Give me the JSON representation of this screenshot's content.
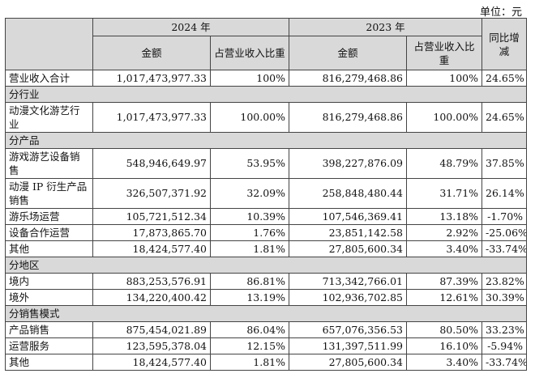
{
  "unit_label": "单位：元",
  "header": {
    "year_2024": "2024 年",
    "year_2023": "2023 年",
    "amount": "金额",
    "ratio": "占营业收入比重",
    "yoy": "同比增减"
  },
  "total": {
    "label": "营业收入合计",
    "amount_2024": "1,017,473,977.33",
    "ratio_2024": "100%",
    "amount_2023": "816,279,468.86",
    "ratio_2023": "100%",
    "yoy": "24.65%"
  },
  "sections": {
    "industry": {
      "title": "分行业",
      "rows": [
        {
          "label": "动漫文化游艺行业",
          "amount_2024": "1,017,473,977.33",
          "ratio_2024": "100.00%",
          "amount_2023": "816,279,468.86",
          "ratio_2023": "100.00%",
          "yoy": "24.65%"
        }
      ]
    },
    "product": {
      "title": "分产品",
      "rows": [
        {
          "label": "游戏游艺设备销售",
          "amount_2024": "548,946,649.97",
          "ratio_2024": "53.95%",
          "amount_2023": "398,227,876.09",
          "ratio_2023": "48.79%",
          "yoy": "37.85%"
        },
        {
          "label": "动漫 IP 衍生产品销售",
          "amount_2024": "326,507,371.92",
          "ratio_2024": "32.09%",
          "amount_2023": "258,848,480.44",
          "ratio_2023": "31.71%",
          "yoy": "26.14%"
        },
        {
          "label": "游乐场运营",
          "amount_2024": "105,721,512.34",
          "ratio_2024": "10.39%",
          "amount_2023": "107,546,369.41",
          "ratio_2023": "13.18%",
          "yoy": "-1.70%"
        },
        {
          "label": "设备合作运营",
          "amount_2024": "17,873,865.70",
          "ratio_2024": "1.76%",
          "amount_2023": "23,851,142.58",
          "ratio_2023": "2.92%",
          "yoy": "-25.06%"
        },
        {
          "label": "其他",
          "amount_2024": "18,424,577.40",
          "ratio_2024": "1.81%",
          "amount_2023": "27,805,600.34",
          "ratio_2023": "3.40%",
          "yoy": "-33.74%"
        }
      ]
    },
    "region": {
      "title": "分地区",
      "rows": [
        {
          "label": "境内",
          "amount_2024": "883,253,576.91",
          "ratio_2024": "86.81%",
          "amount_2023": "713,342,766.01",
          "ratio_2023": "87.39%",
          "yoy": "23.82%"
        },
        {
          "label": "境外",
          "amount_2024": "134,220,400.42",
          "ratio_2024": "13.19%",
          "amount_2023": "102,936,702.85",
          "ratio_2023": "12.61%",
          "yoy": "30.39%"
        }
      ]
    },
    "sales_mode": {
      "title": "分销售模式",
      "rows": [
        {
          "label": "产品销售",
          "amount_2024": "875,454,021.89",
          "ratio_2024": "86.04%",
          "amount_2023": "657,076,356.53",
          "ratio_2023": "80.50%",
          "yoy": "33.23%"
        },
        {
          "label": "运营服务",
          "amount_2024": "123,595,378.04",
          "ratio_2024": "12.15%",
          "amount_2023": "131,397,511.99",
          "ratio_2023": "16.10%",
          "yoy": "-5.94%"
        },
        {
          "label": "其他",
          "amount_2024": "18,424,577.40",
          "ratio_2024": "1.81%",
          "amount_2023": "27,805,600.34",
          "ratio_2023": "3.40%",
          "yoy": "-33.74%"
        }
      ]
    }
  }
}
